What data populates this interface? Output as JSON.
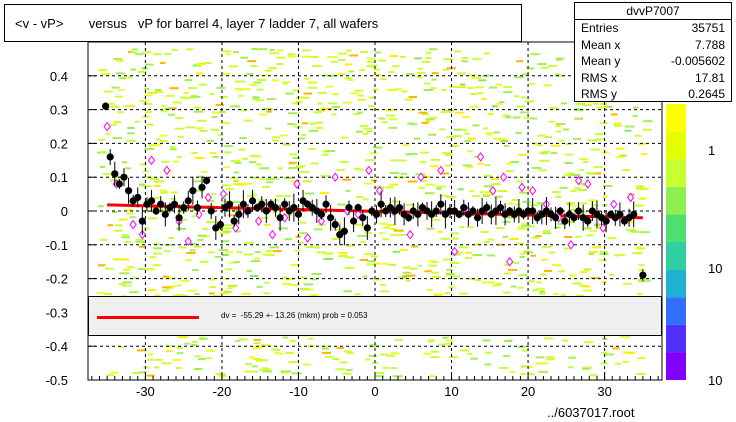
{
  "title": "<v - vP>       versus   vP for barrel 4, layer 7 ladder 7, all wafers",
  "stats": {
    "name": "dvvP7007",
    "rows": [
      {
        "label": "Entries",
        "value": "35751"
      },
      {
        "label": "Mean x",
        "value": "7.788"
      },
      {
        "label": "Mean y",
        "value": "-0.005602"
      },
      {
        "label": "RMS x",
        "value": "17.81"
      },
      {
        "label": "RMS y",
        "value": "0.2645"
      }
    ]
  },
  "legend": {
    "fit_text": "dv =  -55.29 +- 13.26 (mkm) prob = 0.053"
  },
  "footer": "../6037017.root",
  "colors": {
    "fit": "#ff0000",
    "points": "#000000",
    "profile": "#ff00ff",
    "band": "#c8ff32"
  },
  "chart_data": {
    "type": "scatter",
    "xlim": [
      -37.5,
      37.5
    ],
    "ylim": [
      -0.5,
      0.5
    ],
    "x_ticks": [
      -30,
      -20,
      -10,
      0,
      10,
      20,
      30
    ],
    "x_tick_labels": [
      "-30",
      "-20",
      "-10",
      "0",
      "10",
      "20",
      "30"
    ],
    "y_ticks": [
      -0.5,
      -0.4,
      -0.3,
      -0.2,
      -0.1,
      0,
      0.1,
      0.2,
      0.3,
      0.4
    ],
    "y_tick_labels": [
      "-0.5",
      "-0.4",
      "-0.3",
      "-0.2",
      "-0.1",
      "0",
      "0.1",
      "0.2",
      "0.3",
      "0.4"
    ],
    "colorbar_labels": [
      "1",
      "10",
      "10"
    ],
    "grid": true,
    "fit_line": {
      "x": [
        -35,
        35
      ],
      "y": [
        0.018,
        -0.02
      ]
    },
    "points": [
      {
        "x": -35.2,
        "y": 0.31
      },
      {
        "x": -34.6,
        "y": 0.16
      },
      {
        "x": -34.0,
        "y": 0.11
      },
      {
        "x": -33.4,
        "y": 0.08
      },
      {
        "x": -32.8,
        "y": 0.1
      },
      {
        "x": -32.2,
        "y": 0.06
      },
      {
        "x": -31.6,
        "y": 0.03
      },
      {
        "x": -31.0,
        "y": 0.04
      },
      {
        "x": -30.4,
        "y": -0.03
      },
      {
        "x": -29.8,
        "y": 0.02
      },
      {
        "x": -29.2,
        "y": 0.03
      },
      {
        "x": -28.6,
        "y": 0.0
      },
      {
        "x": -28.0,
        "y": 0.02
      },
      {
        "x": -27.4,
        "y": -0.01
      },
      {
        "x": -26.8,
        "y": 0.01
      },
      {
        "x": -26.2,
        "y": 0.02
      },
      {
        "x": -25.6,
        "y": -0.02
      },
      {
        "x": -25.0,
        "y": 0.01
      },
      {
        "x": -24.4,
        "y": 0.03
      },
      {
        "x": -23.8,
        "y": 0.06
      },
      {
        "x": -23.2,
        "y": 0.01
      },
      {
        "x": -22.6,
        "y": 0.07
      },
      {
        "x": -22.0,
        "y": 0.09
      },
      {
        "x": -21.4,
        "y": 0.0
      },
      {
        "x": -20.8,
        "y": -0.05
      },
      {
        "x": -20.2,
        "y": -0.04
      },
      {
        "x": -19.6,
        "y": 0.01
      },
      {
        "x": -19.0,
        "y": 0.02
      },
      {
        "x": -18.4,
        "y": -0.03
      },
      {
        "x": -17.8,
        "y": -0.01
      },
      {
        "x": -17.2,
        "y": 0.02
      },
      {
        "x": -16.6,
        "y": 0.0
      },
      {
        "x": -16.0,
        "y": 0.03
      },
      {
        "x": -15.4,
        "y": 0.01
      },
      {
        "x": -14.8,
        "y": 0.02
      },
      {
        "x": -14.2,
        "y": 0.0
      },
      {
        "x": -13.6,
        "y": 0.02
      },
      {
        "x": -13.0,
        "y": 0.01
      },
      {
        "x": -12.4,
        "y": -0.02
      },
      {
        "x": -11.8,
        "y": 0.02
      },
      {
        "x": -11.2,
        "y": 0.0
      },
      {
        "x": -10.6,
        "y": 0.01
      },
      {
        "x": -10.0,
        "y": -0.01
      },
      {
        "x": -9.4,
        "y": 0.03
      },
      {
        "x": -8.8,
        "y": 0.02
      },
      {
        "x": -8.2,
        "y": 0.01
      },
      {
        "x": -7.6,
        "y": 0.0
      },
      {
        "x": -7.0,
        "y": -0.01
      },
      {
        "x": -6.4,
        "y": 0.02
      },
      {
        "x": -5.8,
        "y": -0.02
      },
      {
        "x": -5.2,
        "y": -0.04
      },
      {
        "x": -4.6,
        "y": -0.07
      },
      {
        "x": -4.0,
        "y": -0.06
      },
      {
        "x": -3.4,
        "y": 0.01
      },
      {
        "x": -2.8,
        "y": -0.03
      },
      {
        "x": -2.2,
        "y": 0.01
      },
      {
        "x": -1.6,
        "y": -0.02
      },
      {
        "x": -1.0,
        "y": -0.05
      },
      {
        "x": -0.4,
        "y": 0.0
      },
      {
        "x": 0.2,
        "y": -0.01
      },
      {
        "x": 0.8,
        "y": 0.02
      },
      {
        "x": 1.4,
        "y": 0.0
      },
      {
        "x": 2.0,
        "y": 0.01
      },
      {
        "x": 2.6,
        "y": 0.0
      },
      {
        "x": 3.2,
        "y": 0.01
      },
      {
        "x": 3.8,
        "y": -0.01
      },
      {
        "x": 4.4,
        "y": -0.02
      },
      {
        "x": 5.0,
        "y": 0.0
      },
      {
        "x": 5.6,
        "y": -0.01
      },
      {
        "x": 6.2,
        "y": 0.01
      },
      {
        "x": 6.8,
        "y": 0.0
      },
      {
        "x": 7.4,
        "y": -0.01
      },
      {
        "x": 8.0,
        "y": 0.0
      },
      {
        "x": 8.6,
        "y": 0.02
      },
      {
        "x": 9.2,
        "y": -0.01
      },
      {
        "x": 9.8,
        "y": 0.0
      },
      {
        "x": 10.4,
        "y": 0.0
      },
      {
        "x": 11.0,
        "y": -0.01
      },
      {
        "x": 11.6,
        "y": 0.01
      },
      {
        "x": 12.2,
        "y": -0.01
      },
      {
        "x": 12.8,
        "y": 0.0
      },
      {
        "x": 13.4,
        "y": -0.02
      },
      {
        "x": 14.0,
        "y": 0.0
      },
      {
        "x": 14.6,
        "y": 0.01
      },
      {
        "x": 15.2,
        "y": -0.01
      },
      {
        "x": 15.8,
        "y": 0.0
      },
      {
        "x": 16.4,
        "y": 0.01
      },
      {
        "x": 17.0,
        "y": -0.01
      },
      {
        "x": 17.6,
        "y": 0.0
      },
      {
        "x": 18.2,
        "y": -0.01
      },
      {
        "x": 18.8,
        "y": 0.0
      },
      {
        "x": 19.4,
        "y": -0.01
      },
      {
        "x": 20.0,
        "y": 0.0
      },
      {
        "x": 20.6,
        "y": 0.0
      },
      {
        "x": 21.2,
        "y": -0.02
      },
      {
        "x": 21.8,
        "y": -0.01
      },
      {
        "x": 22.4,
        "y": 0.0
      },
      {
        "x": 23.0,
        "y": -0.01
      },
      {
        "x": 23.6,
        "y": -0.02
      },
      {
        "x": 24.2,
        "y": 0.0
      },
      {
        "x": 24.8,
        "y": -0.03
      },
      {
        "x": 25.4,
        "y": -0.01
      },
      {
        "x": 26.0,
        "y": -0.02
      },
      {
        "x": 26.6,
        "y": 0.0
      },
      {
        "x": 27.2,
        "y": -0.02
      },
      {
        "x": 27.8,
        "y": -0.03
      },
      {
        "x": 28.4,
        "y": 0.0
      },
      {
        "x": 29.0,
        "y": -0.01
      },
      {
        "x": 29.6,
        "y": -0.02
      },
      {
        "x": 30.2,
        "y": -0.03
      },
      {
        "x": 30.8,
        "y": -0.01
      },
      {
        "x": 31.4,
        "y": -0.02
      },
      {
        "x": 32.0,
        "y": -0.01
      },
      {
        "x": 32.6,
        "y": -0.03
      },
      {
        "x": 33.2,
        "y": -0.02
      },
      {
        "x": 33.8,
        "y": -0.01
      },
      {
        "x": 35.0,
        "y": -0.19
      }
    ],
    "profile_points": [
      {
        "x": -35.0,
        "y": 0.25
      },
      {
        "x": -33.8,
        "y": 0.08
      },
      {
        "x": -31.6,
        "y": -0.04
      },
      {
        "x": -30.4,
        "y": -0.07
      },
      {
        "x": -29.2,
        "y": 0.15
      },
      {
        "x": -27.2,
        "y": 0.12
      },
      {
        "x": -25.6,
        "y": -0.03
      },
      {
        "x": -24.4,
        "y": -0.09
      },
      {
        "x": -23.0,
        "y": -0.01
      },
      {
        "x": -21.8,
        "y": 0.04
      },
      {
        "x": -19.8,
        "y": 0.05
      },
      {
        "x": -18.2,
        "y": -0.05
      },
      {
        "x": -16.8,
        "y": 0.0
      },
      {
        "x": -15.2,
        "y": -0.03
      },
      {
        "x": -13.4,
        "y": -0.07
      },
      {
        "x": -11.8,
        "y": -0.02
      },
      {
        "x": -10.2,
        "y": 0.08
      },
      {
        "x": -8.8,
        "y": -0.08
      },
      {
        "x": -7.0,
        "y": -0.03
      },
      {
        "x": -5.2,
        "y": 0.1
      },
      {
        "x": -3.6,
        "y": 0.0
      },
      {
        "x": -2.2,
        "y": -0.01
      },
      {
        "x": -0.8,
        "y": 0.12
      },
      {
        "x": 0.6,
        "y": 0.06
      },
      {
        "x": 2.4,
        "y": 0.0
      },
      {
        "x": 4.6,
        "y": -0.07
      },
      {
        "x": 6.0,
        "y": 0.1
      },
      {
        "x": 8.6,
        "y": 0.12
      },
      {
        "x": 10.4,
        "y": -0.12
      },
      {
        "x": 12.2,
        "y": 0.0
      },
      {
        "x": 13.8,
        "y": 0.16
      },
      {
        "x": 15.4,
        "y": 0.06
      },
      {
        "x": 16.8,
        "y": 0.1
      },
      {
        "x": 17.6,
        "y": -0.15
      },
      {
        "x": 19.2,
        "y": 0.07
      },
      {
        "x": 20.6,
        "y": 0.06
      },
      {
        "x": 22.4,
        "y": 0.02
      },
      {
        "x": 24.0,
        "y": -0.02
      },
      {
        "x": 25.6,
        "y": -0.1
      },
      {
        "x": 26.6,
        "y": 0.09
      },
      {
        "x": 27.8,
        "y": 0.08
      },
      {
        "x": 29.8,
        "y": -0.05
      },
      {
        "x": 31.2,
        "y": 0.02
      },
      {
        "x": 33.4,
        "y": 0.04
      }
    ]
  }
}
